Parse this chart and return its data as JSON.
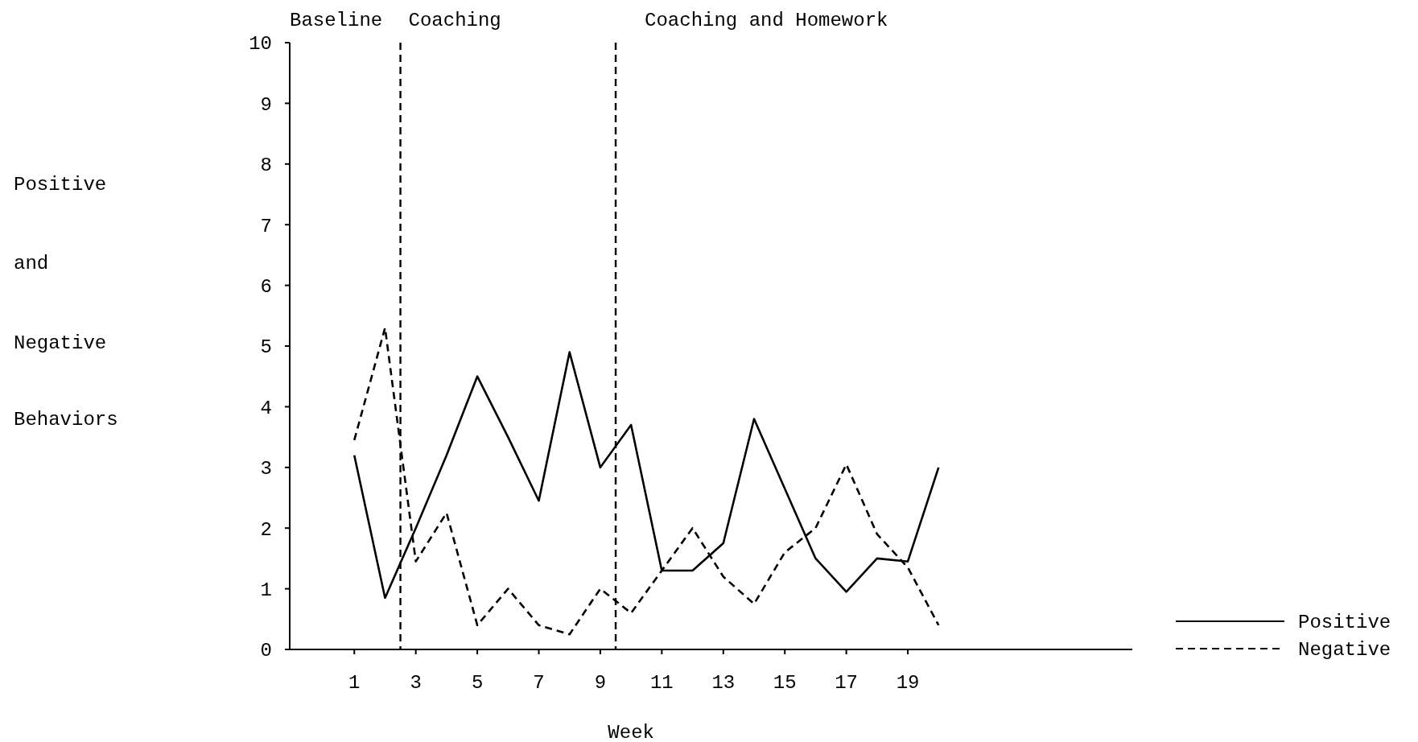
{
  "chart_data": {
    "type": "line",
    "xlabel": "Week",
    "ylabel": "Positive and Negative Behaviors",
    "x": [
      1,
      2,
      3,
      4,
      5,
      6,
      7,
      8,
      9,
      10,
      11,
      12,
      13,
      14,
      15,
      16,
      17,
      18,
      19,
      20
    ],
    "series": [
      {
        "name": "Positive",
        "color": "#000000",
        "line_style": "solid",
        "values": [
          3.2,
          0.85,
          2.0,
          3.2,
          4.5,
          3.5,
          2.45,
          4.9,
          3.0,
          3.7,
          1.3,
          1.3,
          1.75,
          3.8,
          2.65,
          1.5,
          0.95,
          1.5,
          1.45,
          3.0
        ]
      },
      {
        "name": "Negative",
        "color": "#000000",
        "line_style": "dashed",
        "values": [
          3.45,
          5.3,
          1.45,
          2.25,
          0.4,
          1.0,
          0.4,
          0.25,
          1.0,
          0.6,
          1.3,
          2.0,
          1.2,
          0.75,
          1.6,
          2.0,
          3.05,
          1.9,
          1.35,
          0.4
        ]
      }
    ],
    "xlim": [
      -1.1,
      26.3
    ],
    "xticks": [
      1,
      3,
      5,
      7,
      9,
      11,
      13,
      15,
      17,
      19
    ],
    "ylim": [
      0,
      10
    ],
    "yticks": [
      0,
      1,
      2,
      3,
      4,
      5,
      6,
      7,
      8,
      9,
      10
    ],
    "ref_lines": [
      {
        "axis": "x",
        "value": 2.5,
        "label": "Coaching",
        "line_style": "dashed"
      },
      {
        "axis": "x",
        "value": 9.5,
        "label": "Coaching and Homework",
        "line_style": "dashed"
      }
    ],
    "annotations": [
      "Baseline"
    ],
    "grid": false,
    "legend": "right",
    "marker": "none"
  }
}
